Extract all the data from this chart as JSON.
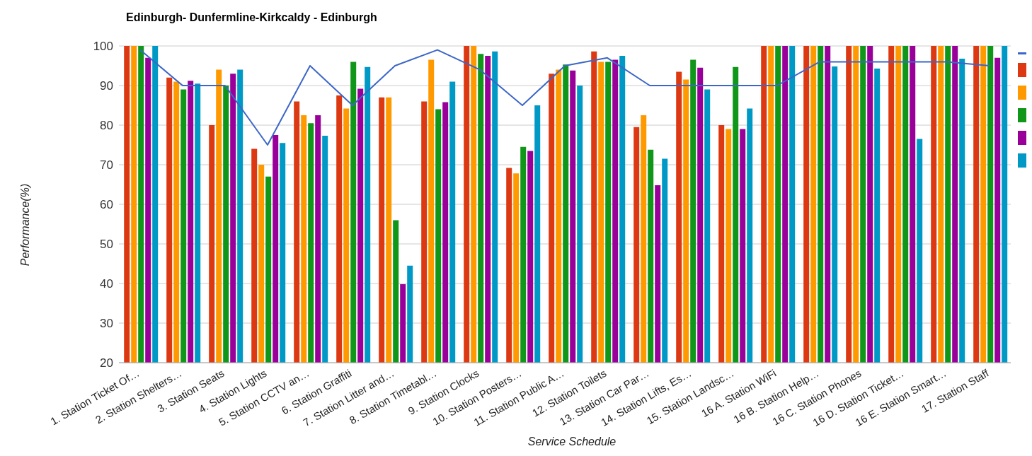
{
  "chart_data": {
    "type": "bar",
    "title": "Edinburgh- Dunfermline-Kirkcaldy - Edinburgh",
    "xlabel": "Service Schedule",
    "ylabel": "Performance(%)",
    "categories": [
      "1. Station Ticket Of…",
      "2. Station Shelters…",
      "3. Station Seats",
      "4. Station Lights",
      "5. Station CCTV an…",
      "6. Station Graffiti",
      "7. Station Litter and…",
      "8. Station Timetabl…",
      "9. Station Clocks",
      "10. Station Posters…",
      "11. Station Public A…",
      "12. Station Toilets",
      "13. Station Car Par…",
      "14. Station Lifts, Es…",
      "15. Station Landsc…",
      "16 A. Station WiFi",
      "16 B. Station Help…",
      "16 C. Station Phones",
      "16 D. Station Ticket…",
      "16 E. Station Smart…",
      "17. Station Staff"
    ],
    "series": [
      {
        "type": "line",
        "color": "#3c66c8",
        "values": [
          99,
          90,
          90,
          75,
          95,
          85,
          95,
          99,
          94,
          85,
          95,
          97,
          90,
          90,
          90,
          90,
          96,
          96,
          96,
          96,
          95
        ]
      },
      {
        "color": "#dc3912",
        "values": [
          100,
          92,
          80,
          74,
          86,
          87.5,
          87,
          86,
          100,
          69.2,
          93,
          98.6,
          79.5,
          93.5,
          80,
          100,
          100,
          100,
          100,
          100,
          100
        ]
      },
      {
        "color": "#ff9900",
        "values": [
          100,
          91,
          94,
          70,
          82.5,
          84.2,
          87,
          96.5,
          100,
          67.8,
          94,
          96,
          82.5,
          91.5,
          79,
          100,
          100,
          100,
          100,
          100,
          100
        ]
      },
      {
        "color": "#109618",
        "values": [
          100,
          89,
          90,
          67,
          80.5,
          96,
          56,
          84,
          98,
          74.5,
          95.3,
          96,
          73.8,
          96.5,
          94.7,
          100,
          100,
          100,
          100,
          100,
          100
        ]
      },
      {
        "color": "#990099",
        "values": [
          97,
          91.2,
          93,
          77.5,
          82.5,
          89.2,
          39.8,
          85.8,
          97.5,
          73.5,
          93.8,
          96.5,
          64.8,
          94.5,
          79,
          100,
          100,
          100,
          100,
          100,
          97
        ]
      },
      {
        "color": "#0099c6",
        "values": [
          100,
          90.5,
          94,
          75.5,
          77.3,
          94.7,
          44.5,
          91,
          98.6,
          85,
          90,
          97.5,
          71.5,
          89,
          84.2,
          100,
          94.8,
          94.3,
          76.5,
          96.8,
          100
        ]
      }
    ],
    "ylim": [
      20,
      100
    ],
    "yticks": [
      20,
      30,
      40,
      50,
      60,
      70,
      80,
      90,
      100
    ],
    "grid": "y"
  }
}
